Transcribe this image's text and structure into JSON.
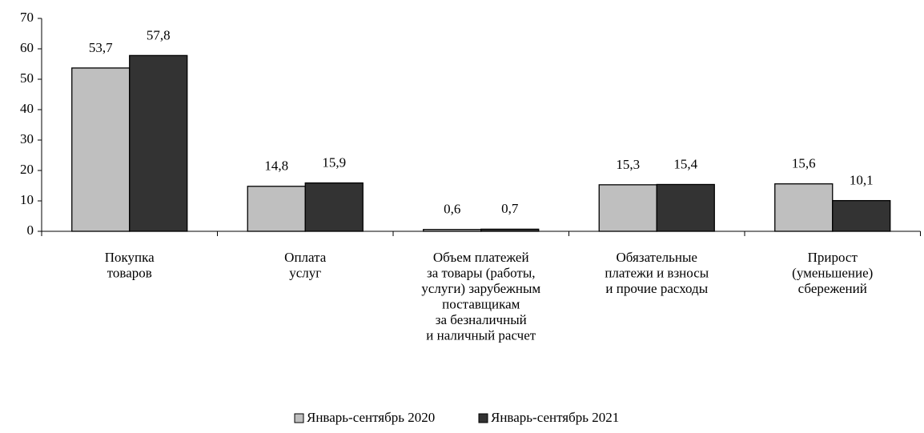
{
  "chart_data": {
    "type": "bar",
    "categories": [
      [
        "Покупка",
        "товаров"
      ],
      [
        "Оплата",
        "услуг"
      ],
      [
        "Объем платежей",
        "за товары (работы,",
        "услуги) зарубежным",
        "поставщикам",
        "за безналичный",
        "и наличный расчет"
      ],
      [
        "Обязательные",
        "платежи и взносы",
        "и прочие расходы"
      ],
      [
        "Прирост",
        "(уменьшение)",
        "сбережений"
      ]
    ],
    "series": [
      {
        "name": "Январь-сентябрь 2020",
        "color": "#bfbfbf",
        "values": [
          53.7,
          14.8,
          0.6,
          15.3,
          15.6
        ],
        "value_labels": [
          "53,7",
          "14,8",
          "0,6",
          "15,3",
          "15,6"
        ]
      },
      {
        "name": "Январь-сентябрь 2021",
        "color": "#333333",
        "values": [
          57.8,
          15.9,
          0.7,
          15.4,
          10.1
        ],
        "value_labels": [
          "57,8",
          "15,9",
          "0,7",
          "15,4",
          "10,1"
        ]
      }
    ],
    "ylim": [
      0,
      70
    ],
    "yticks": [
      0,
      10,
      20,
      30,
      40,
      50,
      60,
      70
    ],
    "grid": false,
    "legend": "bottom"
  }
}
